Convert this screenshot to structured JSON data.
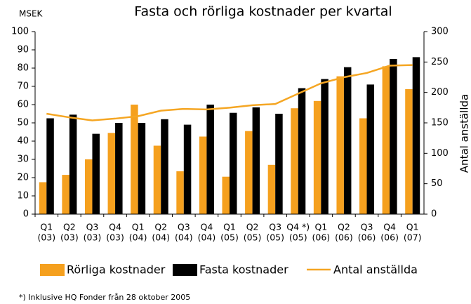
{
  "chart_data": {
    "type": "bar",
    "title": "Fasta och rörliga kostnader per kvartal",
    "y_label": "MSEK",
    "y2_label": "Antal anställda",
    "footnote": "*) Inklusive HQ Fonder från 28 oktober 2005",
    "categories": [
      [
        "Q1",
        "(03)"
      ],
      [
        "Q2",
        "(03)"
      ],
      [
        "Q3",
        "(03)"
      ],
      [
        "Q4",
        "(03)"
      ],
      [
        "Q1",
        "(04)"
      ],
      [
        "Q2",
        "(04)"
      ],
      [
        "Q3",
        "(04)"
      ],
      [
        "Q4",
        "(04)"
      ],
      [
        "Q1",
        "(05)"
      ],
      [
        "Q2",
        "(05)"
      ],
      [
        "Q3",
        "(05)"
      ],
      [
        "Q4 *)",
        "(05)"
      ],
      [
        "Q1",
        "(06)"
      ],
      [
        "Q2",
        "(06)"
      ],
      [
        "Q3",
        "(06)"
      ],
      [
        "Q4",
        "(06)"
      ],
      [
        "Q1",
        "(07)"
      ]
    ],
    "series": [
      {
        "name": "Rörliga kostnader",
        "color": "#f5a01e",
        "type": "bar",
        "values": [
          17.5,
          21.5,
          30,
          44.5,
          60,
          37.5,
          23.5,
          42.5,
          20.5,
          45.5,
          27,
          58,
          62,
          75.5,
          52.5,
          81,
          68.5
        ]
      },
      {
        "name": "Fasta kostnader",
        "color": "#000000",
        "type": "bar",
        "values": [
          52.5,
          54.5,
          44,
          50,
          50,
          52,
          49,
          60,
          55.5,
          58.5,
          55,
          69,
          74,
          80.5,
          71,
          85,
          86
        ]
      },
      {
        "name": "Antal anställda",
        "color": "#f5a623",
        "type": "line",
        "axis": "y2",
        "values": [
          165,
          159,
          154,
          157,
          161,
          170,
          173,
          172,
          175,
          179,
          181,
          198,
          215,
          225,
          232,
          244,
          245
        ]
      }
    ],
    "ylim": [
      0,
      100
    ],
    "yticks": [
      0,
      10,
      20,
      30,
      40,
      50,
      60,
      70,
      80,
      90,
      100
    ],
    "y2lim": [
      0,
      300
    ],
    "y2ticks": [
      0,
      50,
      100,
      150,
      200,
      250,
      300
    ]
  }
}
